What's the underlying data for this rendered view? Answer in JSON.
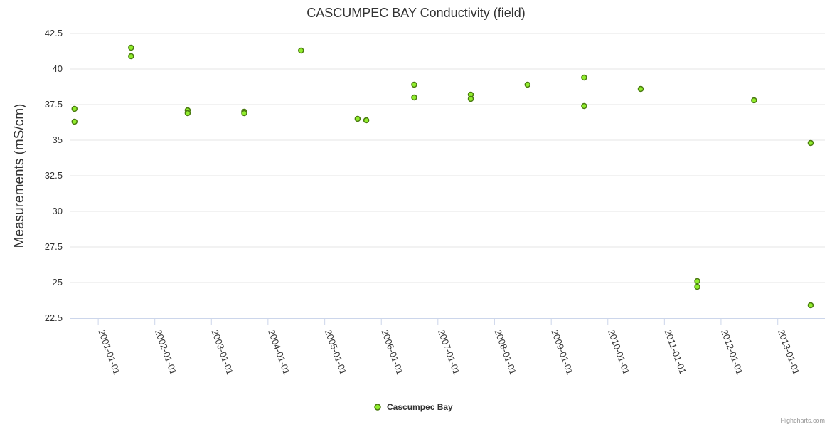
{
  "chart_data": {
    "type": "scatter",
    "title": "CASCUMPEC BAY Conductivity (field)",
    "xlabel": "",
    "ylabel": "Measurements (mS/cm)",
    "ylim": [
      22.5,
      42.5
    ],
    "yticks": [
      "22.5",
      "25",
      "27.5",
      "30",
      "32.5",
      "35",
      "37.5",
      "40",
      "42.5"
    ],
    "xlim": [
      "2000-07-01",
      "2013-11-01"
    ],
    "xticks": [
      "2001-01-01",
      "2002-01-01",
      "2003-01-01",
      "2004-01-01",
      "2005-01-01",
      "2006-01-01",
      "2007-01-01",
      "2008-01-01",
      "2009-01-01",
      "2010-01-01",
      "2011-01-01",
      "2012-01-01",
      "2013-01-01"
    ],
    "series": [
      {
        "name": "Cascumpec Bay",
        "color": "#90ed2d",
        "edge_color": "#4a7a10",
        "points": [
          {
            "x": "2000-08-01",
            "y": 37.2
          },
          {
            "x": "2000-08-01",
            "y": 36.3
          },
          {
            "x": "2001-08-01",
            "y": 41.5
          },
          {
            "x": "2001-08-01",
            "y": 40.9
          },
          {
            "x": "2002-08-01",
            "y": 37.1
          },
          {
            "x": "2002-08-01",
            "y": 36.9
          },
          {
            "x": "2003-08-01",
            "y": 37.0
          },
          {
            "x": "2003-08-01",
            "y": 36.9
          },
          {
            "x": "2004-08-01",
            "y": 41.3
          },
          {
            "x": "2005-08-01",
            "y": 36.5
          },
          {
            "x": "2005-09-26",
            "y": 36.4
          },
          {
            "x": "2006-08-01",
            "y": 38.9
          },
          {
            "x": "2006-08-01",
            "y": 38.0
          },
          {
            "x": "2007-08-01",
            "y": 38.2
          },
          {
            "x": "2007-08-01",
            "y": 37.9
          },
          {
            "x": "2008-08-01",
            "y": 38.9
          },
          {
            "x": "2009-08-01",
            "y": 39.4
          },
          {
            "x": "2009-08-01",
            "y": 37.4
          },
          {
            "x": "2010-08-01",
            "y": 38.6
          },
          {
            "x": "2011-08-01",
            "y": 25.1
          },
          {
            "x": "2011-08-01",
            "y": 24.7
          },
          {
            "x": "2012-08-01",
            "y": 37.8
          },
          {
            "x": "2013-08-01",
            "y": 34.8
          },
          {
            "x": "2013-08-01",
            "y": 23.4
          }
        ]
      }
    ],
    "grid": true,
    "legend": "bottom-center",
    "credits": "Highcharts.com"
  }
}
